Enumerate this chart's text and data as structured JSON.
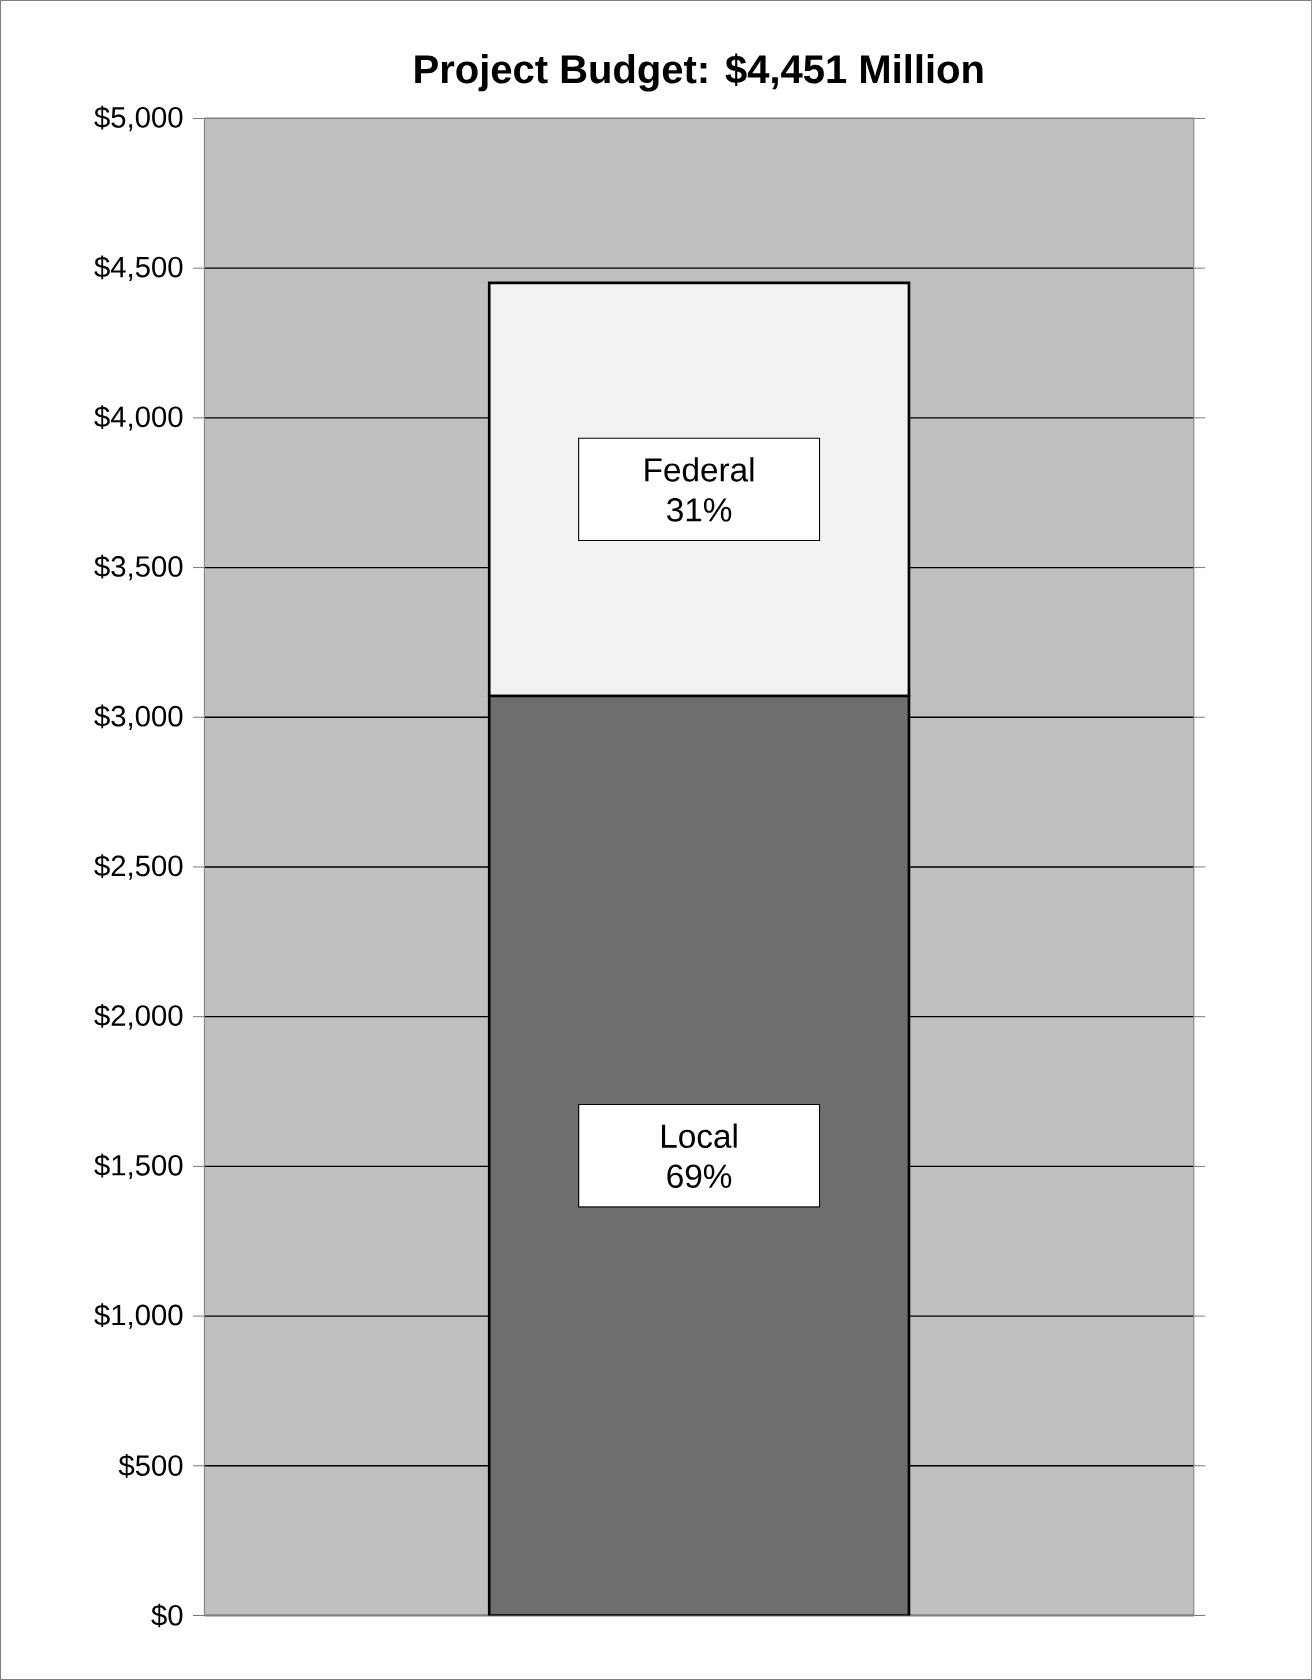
{
  "chart_data": {
    "type": "bar",
    "title": "Project Budget: $4,451 Million",
    "stacked": true,
    "categories": [
      null
    ],
    "series": [
      {
        "name": "Local",
        "color": "#6e6e6e",
        "values": [
          3071
        ]
      },
      {
        "name": "Federal",
        "color": "#f2f2f2",
        "values": [
          1380
        ]
      }
    ],
    "annotations": [
      "69%",
      "31%"
    ],
    "ylim": [
      0,
      5000
    ],
    "yticks": [
      {
        "value": 0,
        "label": "$0"
      },
      {
        "value": 500,
        "label": "$500"
      },
      {
        "value": 1000,
        "label": "$1,000"
      },
      {
        "value": 1500,
        "label": "$1,500"
      },
      {
        "value": 2000,
        "label": "$2,000"
      },
      {
        "value": 2500,
        "label": "$2,500"
      },
      {
        "value": 3000,
        "label": "$3,000"
      },
      {
        "value": 3500,
        "label": "$3,500"
      },
      {
        "value": 4000,
        "label": "$4,000"
      },
      {
        "value": 4500,
        "label": "$4,500"
      },
      {
        "value": 5000,
        "label": "$5,000"
      }
    ],
    "grid": "y"
  }
}
